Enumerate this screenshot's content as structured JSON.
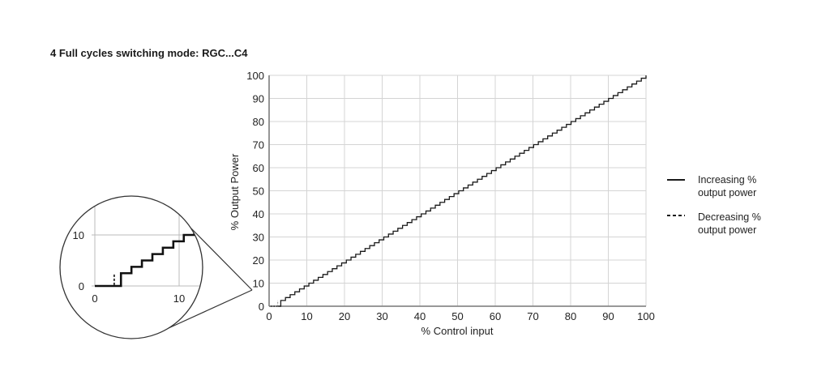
{
  "title": "4 Full cycles switching mode: RGC...C4",
  "chart_data": {
    "type": "line",
    "title": "4 Full cycles switching mode: RGC...C4",
    "xlabel": "% Control input",
    "ylabel": "% Output Power",
    "xlim": [
      0,
      100
    ],
    "ylim": [
      0,
      100
    ],
    "xticks": [
      0,
      10,
      20,
      30,
      40,
      50,
      60,
      70,
      80,
      90,
      100
    ],
    "yticks": [
      0,
      10,
      20,
      30,
      40,
      50,
      60,
      70,
      80,
      90,
      100
    ],
    "grid": true,
    "legend_position": "right",
    "step_size": 1.25,
    "series": [
      {
        "name": "Increasing % output power",
        "style": "solid",
        "description": "Staircase: 0% output until ~3.1% control input, then jumps to ~2.5% and rises in 1.25% steps to 100% at 100% input",
        "first_step_x": 3.1,
        "first_step_y": 2.5,
        "x": [
          0,
          3.1,
          3.1,
          10,
          20,
          30,
          40,
          50,
          60,
          70,
          80,
          90,
          100
        ],
        "y": [
          0,
          0,
          2.5,
          10,
          20,
          30,
          40,
          50,
          60,
          70,
          80,
          90,
          100
        ]
      },
      {
        "name": "Decreasing % output power",
        "style": "dashed",
        "description": "Hysteresis: falls to 0% at ~2.3% control input",
        "x": [
          0,
          2.3,
          2.3
        ],
        "y": [
          0,
          0,
          2.5
        ]
      }
    ],
    "inset": {
      "description": "Magnified view of 0-10% region",
      "xticks": [
        0,
        10
      ],
      "yticks": [
        0,
        10
      ]
    }
  },
  "legend": {
    "items": [
      {
        "line1": "Increasing %",
        "line2": "output power",
        "style": "solid"
      },
      {
        "line1": "Decreasing %",
        "line2": "output power",
        "style": "dashed"
      }
    ]
  },
  "colors": {
    "grid": "#d4d4d4",
    "axis": "#8a8a8a",
    "line": "#1a1a1a",
    "text": "#222222"
  }
}
